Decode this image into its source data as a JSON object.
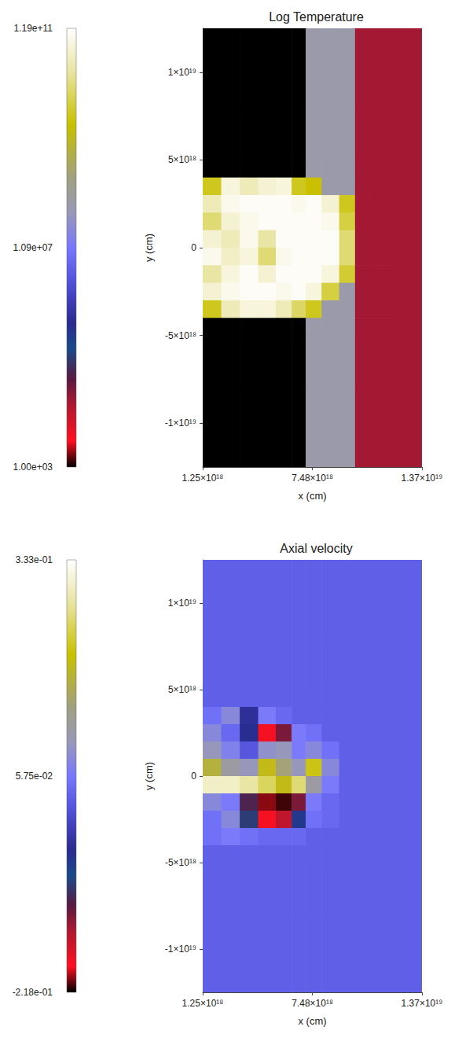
{
  "chart_data": [
    {
      "type": "heatmap",
      "title": "Log Temperature",
      "x_label": "x (cm)",
      "y_label": "y (cm)",
      "log": true,
      "xlim": [
        1.25e+18,
        1.37e+19
      ],
      "ylim": [
        -1.25e+19,
        1.25e+19
      ],
      "xticks": [
        {
          "value": 1.25e+18,
          "label": "1.25×10¹⁸"
        },
        {
          "value": 7.48e+18,
          "label": "7.48×10¹⁸"
        },
        {
          "value": 1.37e+19,
          "label": "1.37×10¹⁹"
        }
      ],
      "yticks": [
        {
          "value": -1e+19,
          "label": "-1×10¹⁹"
        },
        {
          "value": -5e+18,
          "label": "-5×10¹⁸"
        },
        0,
        {
          "value": 5e+18,
          "label": "5×10¹⁸"
        },
        {
          "value": 1e+19,
          "label": "1×10¹⁹"
        }
      ],
      "x_edges": [
        1.25e+18,
        2.3e+18,
        3.35e+18,
        4.4e+18,
        5.4e+18,
        6.3e+18,
        7.1e+18,
        8e+18,
        9e+18,
        9.9e+18,
        1.1e+19,
        1.23e+19,
        1.37e+19
      ],
      "y_edges": [
        1.25e+19,
        8e+18,
        5e+18,
        4e+18,
        3e+18,
        2e+18,
        1e+18,
        0,
        -1e+18,
        -2e+18,
        -3e+18,
        -4e+18,
        -5e+18,
        -8e+18,
        -1.25e+19
      ],
      "cells": [
        [
          1000.0,
          1000.0,
          1000.0,
          1000.0,
          1000.0,
          1000.0,
          70000000.0,
          70000000.0,
          70000000.0,
          16000.0,
          16000.0,
          16000.0
        ],
        [
          1000.0,
          1000.0,
          1000.0,
          1000.0,
          1000.0,
          1000.0,
          70000000.0,
          70000000.0,
          70000000.0,
          16000.0,
          16000.0,
          16000.0
        ],
        [
          1000.0,
          1000.0,
          1000.0,
          1000.0,
          1000.0,
          1000.0,
          70000000.0,
          70000000.0,
          70000000.0,
          16000.0,
          16000.0,
          16000.0
        ],
        [
          3000000000.0,
          60000000000.0,
          30000000000.0,
          50000000000.0,
          60000000000.0,
          3000000000.0,
          2000000000.0,
          70000000.0,
          70000000.0,
          16000.0,
          16000.0,
          16000.0
        ],
        [
          30000000000.0,
          80000000000.0,
          100000000000.0,
          100000000000.0,
          100000000000.0,
          80000000000.0,
          100000000000.0,
          50000000000.0,
          3000000000.0,
          16000.0,
          16000.0,
          16000.0
        ],
        [
          10000000000.0,
          50000000000.0,
          80000000000.0,
          100000000000.0,
          100000000000.0,
          100000000000.0,
          100000000000.0,
          80000000000.0,
          5000000000.0,
          16000.0,
          16000.0,
          16000.0
        ],
        [
          50000000000.0,
          30000000000.0,
          80000000000.0,
          20000000000.0,
          100000000000.0,
          100000000000.0,
          100000000000.0,
          100000000000.0,
          10000000000.0,
          16000.0,
          16000.0,
          16000.0
        ],
        [
          80000000000.0,
          40000000000.0,
          60000000000.0,
          10000000000.0,
          80000000000.0,
          100000000000.0,
          100000000000.0,
          100000000000.0,
          10000000000.0,
          16000.0,
          16000.0,
          16000.0
        ],
        [
          20000000000.0,
          60000000000.0,
          100000000000.0,
          50000000000.0,
          100000000000.0,
          100000000000.0,
          100000000000.0,
          60000000000.0,
          4000000000.0,
          16000.0,
          16000.0,
          16000.0
        ],
        [
          50000000000.0,
          80000000000.0,
          100000000000.0,
          100000000000.0,
          80000000000.0,
          100000000000.0,
          60000000000.0,
          5000000000.0,
          70000000.0,
          16000.0,
          16000.0,
          16000.0
        ],
        [
          3000000000.0,
          30000000000.0,
          60000000000.0,
          60000000000.0,
          30000000000.0,
          8000000000.0,
          3000000000.0,
          70000000.0,
          70000000.0,
          16000.0,
          16000.0,
          16000.0
        ],
        [
          1000.0,
          1000.0,
          1000.0,
          1000.0,
          1000.0,
          1000.0,
          70000000.0,
          70000000.0,
          70000000.0,
          16000.0,
          16000.0,
          16000.0
        ],
        [
          1000.0,
          1000.0,
          1000.0,
          1000.0,
          1000.0,
          1000.0,
          70000000.0,
          70000000.0,
          70000000.0,
          16000.0,
          16000.0,
          16000.0
        ],
        [
          1000.0,
          1000.0,
          1000.0,
          1000.0,
          1000.0,
          1000.0,
          70000000.0,
          70000000.0,
          70000000.0,
          16000.0,
          16000.0,
          16000.0
        ]
      ],
      "clim": [
        1000.0,
        119000000000.0
      ],
      "cticks": [
        {
          "value": 1000.0,
          "label": "1.00e+03"
        },
        {
          "value": 10900000.0,
          "label": "1.09e+07"
        },
        {
          "value": 119000000000.0,
          "label": "1.19e+11"
        }
      ]
    },
    {
      "type": "heatmap",
      "title": "Axial velocity",
      "x_label": "x (cm)",
      "y_label": "y (cm)",
      "xlim": [
        1.25e+18,
        1.37e+19
      ],
      "ylim": [
        -1.25e+19,
        1.25e+19
      ],
      "xticks": [
        {
          "value": 1.25e+18,
          "label": "1.25×10¹⁸"
        },
        {
          "value": 7.48e+18,
          "label": "7.48×10¹⁸"
        },
        {
          "value": 1.37e+19,
          "label": "1.37×10¹⁹"
        }
      ],
      "yticks": [
        {
          "value": -1e+19,
          "label": "-1×10¹⁹"
        },
        {
          "value": -5e+18,
          "label": "-5×10¹⁸"
        },
        0,
        {
          "value": 5e+18,
          "label": "5×10¹⁸"
        },
        {
          "value": 1e+19,
          "label": "1×10¹⁹"
        }
      ],
      "x_edges": [
        1.25e+18,
        2.3e+18,
        3.35e+18,
        4.4e+18,
        5.4e+18,
        6.3e+18,
        7.1e+18,
        8e+18,
        9e+18,
        9.9e+18,
        1.1e+19,
        1.23e+19,
        1.37e+19
      ],
      "y_edges": [
        1.25e+19,
        8e+18,
        5e+18,
        4e+18,
        3e+18,
        2e+18,
        1e+18,
        0,
        -1e+18,
        -2e+18,
        -3e+18,
        -4e+18,
        -5e+18,
        -8e+18,
        -1.25e+19
      ],
      "cells": [
        [
          0.03,
          0.03,
          0.03,
          0.03,
          0.03,
          0.03,
          0.03,
          0.03,
          0.03,
          0.03,
          0.03,
          0.03
        ],
        [
          0.03,
          0.03,
          0.03,
          0.03,
          0.03,
          0.03,
          0.03,
          0.03,
          0.03,
          0.03,
          0.03,
          0.03
        ],
        [
          0.03,
          0.03,
          0.03,
          0.03,
          0.03,
          0.03,
          0.03,
          0.03,
          0.03,
          0.03,
          0.03,
          0.03
        ],
        [
          0.05,
          0.08,
          -0.03,
          0.06,
          0.04,
          0.03,
          0.03,
          0.03,
          0.03,
          0.03,
          0.03,
          0.03
        ],
        [
          0.08,
          0.04,
          -0.04,
          -0.18,
          -0.12,
          0.06,
          0.05,
          0.03,
          0.03,
          0.03,
          0.03,
          0.03
        ],
        [
          0.1,
          0.07,
          0.02,
          0.09,
          0.1,
          0.06,
          0.08,
          0.05,
          0.03,
          0.03,
          0.03,
          0.03
        ],
        [
          0.18,
          0.12,
          0.1,
          0.2,
          0.15,
          0.1,
          0.22,
          0.08,
          0.03,
          0.03,
          0.03,
          0.03
        ],
        [
          0.3,
          0.3,
          0.28,
          0.25,
          0.2,
          0.26,
          0.12,
          0.06,
          0.03,
          0.03,
          0.03,
          0.03
        ],
        [
          0.08,
          0.06,
          -0.1,
          -0.2,
          -0.21,
          -0.12,
          0.06,
          0.04,
          0.03,
          0.03,
          0.03,
          0.03
        ],
        [
          0.05,
          0.08,
          -0.08,
          -0.18,
          -0.15,
          -0.05,
          0.05,
          0.04,
          0.03,
          0.03,
          0.03,
          0.03
        ],
        [
          0.05,
          0.06,
          0.05,
          0.04,
          0.04,
          0.04,
          0.03,
          0.03,
          0.03,
          0.03,
          0.03,
          0.03
        ],
        [
          0.03,
          0.03,
          0.03,
          0.03,
          0.03,
          0.03,
          0.03,
          0.03,
          0.03,
          0.03,
          0.03,
          0.03
        ],
        [
          0.03,
          0.03,
          0.03,
          0.03,
          0.03,
          0.03,
          0.03,
          0.03,
          0.03,
          0.03,
          0.03,
          0.03
        ],
        [
          0.03,
          0.03,
          0.03,
          0.03,
          0.03,
          0.03,
          0.03,
          0.03,
          0.03,
          0.03,
          0.03,
          0.03
        ]
      ],
      "clim": [
        -0.218,
        0.333
      ],
      "cticks": [
        {
          "value": -0.218,
          "label": "-2.18e-01"
        },
        {
          "value": 0.0575,
          "label": "5.75e-02"
        },
        {
          "value": 0.333,
          "label": "3.33e-01"
        }
      ]
    }
  ]
}
